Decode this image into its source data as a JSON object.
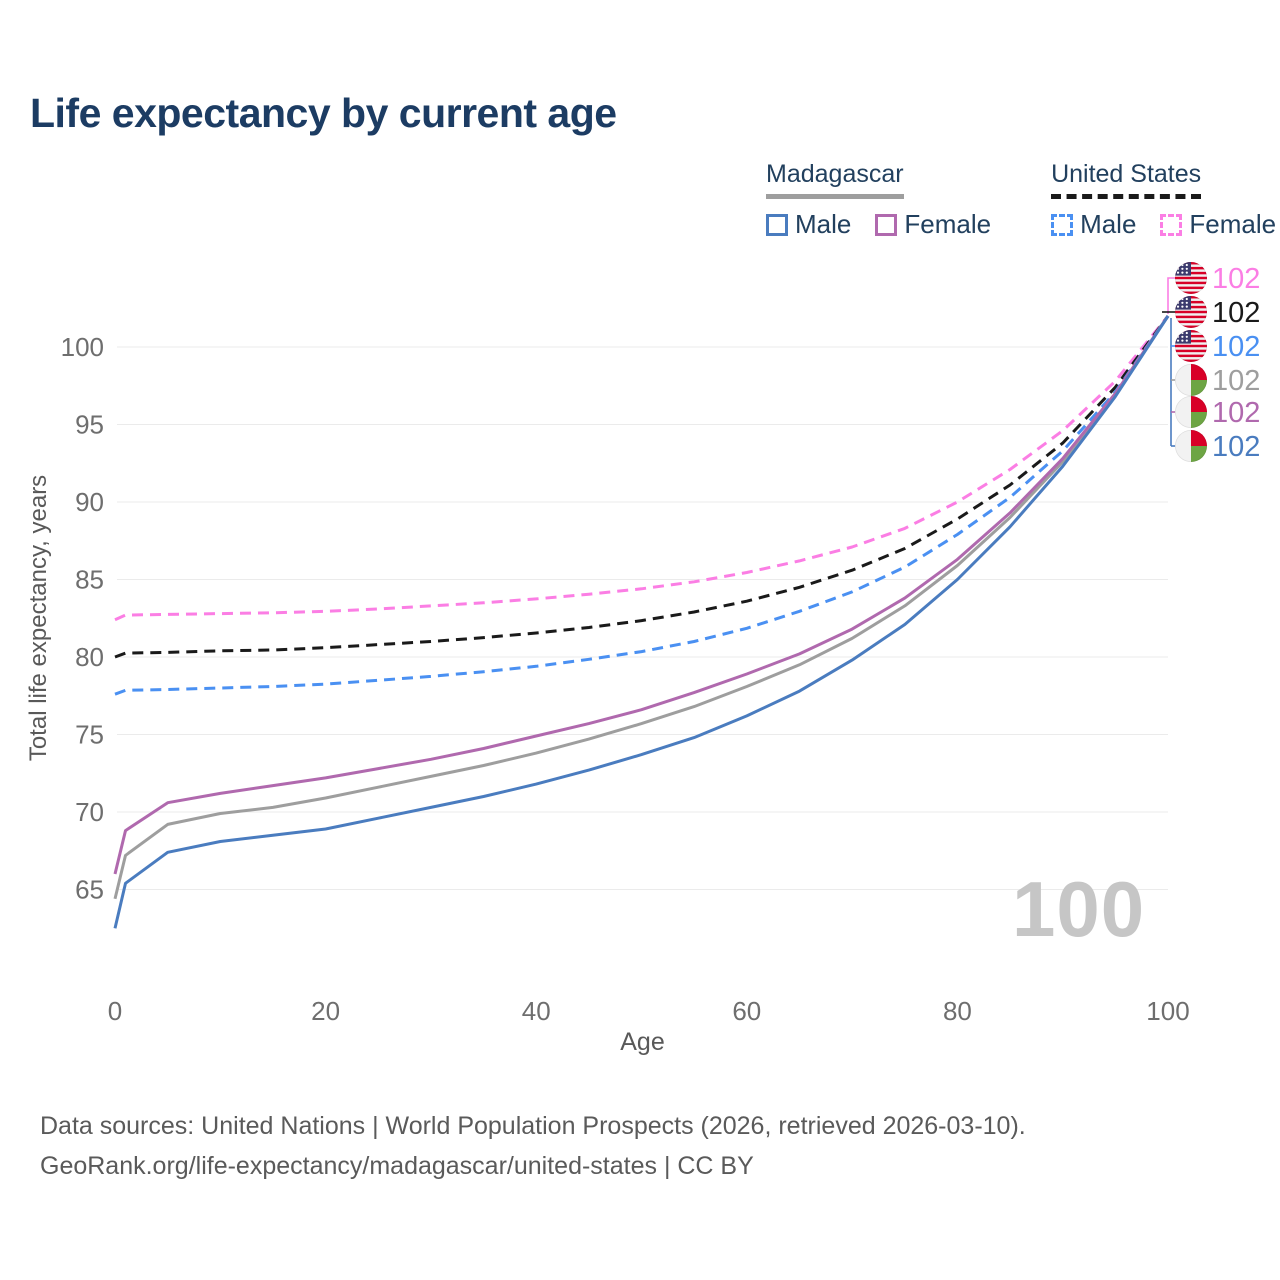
{
  "title": "Life expectancy by current age",
  "legend": {
    "groups": [
      {
        "title": "Madagascar",
        "underline_style": "solid",
        "underline_color": "#9e9e9e",
        "items": [
          {
            "label": "Male",
            "color": "#4a7cbf",
            "dashed": false
          },
          {
            "label": "Female",
            "color": "#b069ae",
            "dashed": false
          }
        ]
      },
      {
        "title": "United States",
        "underline_style": "dashed",
        "underline_color": "#1a1a1a",
        "items": [
          {
            "label": "Male",
            "color": "#4a90f2",
            "dashed": true
          },
          {
            "label": "Female",
            "color": "#fb7ee4",
            "dashed": true
          }
        ]
      }
    ]
  },
  "age_indicator": "100",
  "footer": {
    "line1": "Data sources: United Nations | World Population Prospects (2026, retrieved 2026-03-10).",
    "line2": "GeoRank.org/life-expectancy/madagascar/united-states | CC BY"
  },
  "chart_data": {
    "type": "line",
    "title": "Life expectancy by current age",
    "xlabel": "Age",
    "ylabel": "Total life expectancy, years",
    "xlim": [
      0,
      100
    ],
    "ylim": [
      62,
      103
    ],
    "grid": "horizontal",
    "x_ticks": [
      0,
      20,
      40,
      60,
      80,
      100
    ],
    "y_ticks": [
      65,
      70,
      75,
      80,
      85,
      90,
      95,
      100
    ],
    "legend_position": "top-right",
    "x": [
      0,
      1,
      5,
      10,
      15,
      20,
      25,
      30,
      35,
      40,
      45,
      50,
      55,
      60,
      65,
      70,
      75,
      80,
      85,
      90,
      95,
      100
    ],
    "series": [
      {
        "name": "United States Female",
        "country": "United States",
        "sex": "Female",
        "color": "#fb7ee4",
        "dash": true,
        "flag": "us",
        "end_label": "102",
        "values": [
          82.4,
          82.7,
          82.75,
          82.8,
          82.85,
          82.95,
          83.1,
          83.3,
          83.5,
          83.75,
          84.05,
          84.4,
          84.85,
          85.45,
          86.2,
          87.1,
          88.3,
          90.0,
          92.1,
          94.6,
          97.8,
          102
        ]
      },
      {
        "name": "United States",
        "country": "United States",
        "sex": "All",
        "color": "#1a1a1a",
        "dash": true,
        "flag": "us",
        "end_label": "102",
        "values": [
          80.0,
          80.25,
          80.3,
          80.4,
          80.45,
          80.6,
          80.8,
          81.0,
          81.25,
          81.55,
          81.9,
          82.35,
          82.9,
          83.6,
          84.5,
          85.6,
          87.0,
          88.9,
          91.1,
          93.8,
          97.4,
          102
        ]
      },
      {
        "name": "United States Male",
        "country": "United States",
        "sex": "Male",
        "color": "#4a90f2",
        "dash": true,
        "flag": "us",
        "end_label": "102",
        "values": [
          77.6,
          77.85,
          77.9,
          78.0,
          78.1,
          78.25,
          78.5,
          78.75,
          79.05,
          79.4,
          79.85,
          80.35,
          81.0,
          81.85,
          82.95,
          84.2,
          85.8,
          87.9,
          90.3,
          93.3,
          97.1,
          102
        ]
      },
      {
        "name": "Madagascar",
        "country": "Madagascar",
        "sex": "All",
        "color": "#9e9e9e",
        "dash": false,
        "flag": "mg",
        "end_label": "102",
        "values": [
          64.4,
          67.2,
          69.2,
          69.9,
          70.3,
          70.9,
          71.6,
          72.3,
          73.0,
          73.8,
          74.7,
          75.7,
          76.8,
          78.1,
          79.5,
          81.2,
          83.3,
          85.9,
          89.0,
          92.6,
          96.9,
          102
        ]
      },
      {
        "name": "Madagascar Female",
        "country": "Madagascar",
        "sex": "Female",
        "color": "#b069ae",
        "dash": false,
        "flag": "mg",
        "end_label": "102",
        "values": [
          66.0,
          68.8,
          70.6,
          71.2,
          71.7,
          72.2,
          72.8,
          73.4,
          74.1,
          74.9,
          75.7,
          76.6,
          77.7,
          78.9,
          80.2,
          81.8,
          83.8,
          86.3,
          89.3,
          92.8,
          97.0,
          102
        ]
      },
      {
        "name": "Madagascar Male",
        "country": "Madagascar",
        "sex": "Male",
        "color": "#4a7cbf",
        "dash": false,
        "flag": "mg",
        "end_label": "102",
        "values": [
          62.5,
          65.4,
          67.4,
          68.1,
          68.5,
          68.9,
          69.6,
          70.3,
          71.0,
          71.8,
          72.7,
          73.7,
          74.8,
          76.2,
          77.8,
          79.8,
          82.1,
          85.0,
          88.4,
          92.3,
          96.8,
          102
        ]
      }
    ],
    "flag_palette": {
      "us": {
        "white": "#f0f0f0",
        "stripe_red": "#d80027",
        "canton_blue": "#3c3b6e",
        "star": "#ffffff"
      },
      "mg": {
        "white": "#f2f2f2",
        "red": "#d80027",
        "green": "#6da544"
      }
    }
  }
}
